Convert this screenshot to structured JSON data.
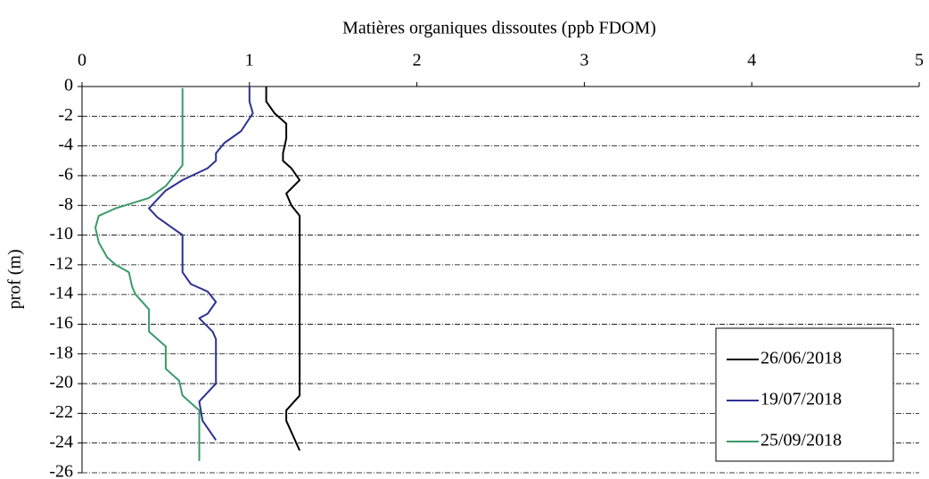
{
  "chart_data": {
    "type": "line",
    "title": "Matières organiques dissoutes (ppb FDOM)",
    "ylabel": "prof (m)",
    "xlim": [
      0,
      5
    ],
    "xticks": [
      0,
      1,
      2,
      3,
      4,
      5
    ],
    "ylim": [
      -26,
      0
    ],
    "yticks": [
      0,
      -2,
      -4,
      -6,
      -8,
      -10,
      -12,
      -14,
      -16,
      -18,
      -20,
      -22,
      -24,
      -26
    ],
    "grid": true,
    "legend": "lower right",
    "series": [
      {
        "name": "26/06/2018",
        "color": "#000000",
        "x": [
          1.1,
          1.1,
          1.15,
          1.22,
          1.22,
          1.2,
          1.2,
          1.25,
          1.3,
          1.22,
          1.25,
          1.3,
          1.3,
          1.3,
          1.3,
          1.3,
          1.3,
          1.3,
          1.3,
          1.22,
          1.22,
          1.3
        ],
        "y": [
          0,
          -1,
          -1.8,
          -2.5,
          -3.5,
          -4.5,
          -5,
          -5.5,
          -6.3,
          -7.2,
          -8,
          -8.7,
          -10,
          -12,
          -14,
          -16,
          -18,
          -20,
          -20.8,
          -21.8,
          -22.5,
          -24.5
        ]
      },
      {
        "name": "19/07/2018",
        "color": "#2e3192",
        "x": [
          1,
          1,
          1.02,
          0.95,
          0.85,
          0.8,
          0.8,
          0.75,
          0.6,
          0.5,
          0.4,
          0.45,
          0.6,
          0.6,
          0.65,
          0.75,
          0.8,
          0.75,
          0.7,
          0.78,
          0.8,
          0.8,
          0.75,
          0.7,
          0.72,
          0.8
        ],
        "y": [
          0,
          -1,
          -1.8,
          -3,
          -3.8,
          -4.5,
          -5,
          -5.5,
          -6.3,
          -7,
          -8.2,
          -8.8,
          -10,
          -12.5,
          -13.3,
          -13.8,
          -14.5,
          -15.3,
          -15.6,
          -16.5,
          -17,
          -20,
          -20.6,
          -21.2,
          -22.5,
          -23.8
        ]
      },
      {
        "name": "25/09/2018",
        "color": "#3a9a6a",
        "x": [
          0.6,
          0.6,
          0.6,
          0.55,
          0.5,
          0.4,
          0.2,
          0.1,
          0.08,
          0.1,
          0.15,
          0.2,
          0.28,
          0.3,
          0.32,
          0.4,
          0.4,
          0.5,
          0.5,
          0.58,
          0.6,
          0.65,
          0.7,
          0.7
        ],
        "y": [
          -0.1,
          -4.5,
          -5.3,
          -6,
          -6.7,
          -7.5,
          -8.2,
          -8.7,
          -9.5,
          -10.5,
          -11.5,
          -12,
          -12.5,
          -13.5,
          -14,
          -15,
          -16.5,
          -17.5,
          -19,
          -19.8,
          -20.8,
          -21.3,
          -21.8,
          -25.2
        ]
      }
    ]
  }
}
